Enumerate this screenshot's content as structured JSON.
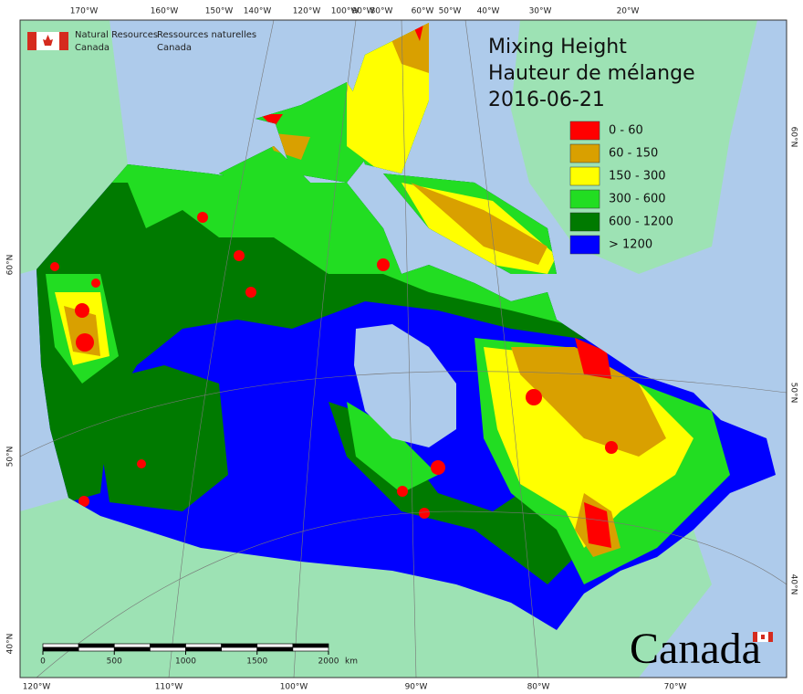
{
  "header": {
    "org_en": [
      "Natural Resources",
      "Canada"
    ],
    "org_fr": [
      "Ressources naturelles",
      "Canada"
    ]
  },
  "title": [
    "Mixing Height",
    "Hauteur de mélange",
    "2016-06-21"
  ],
  "legend": [
    {
      "label": "0 - 60",
      "color": "#ff0000"
    },
    {
      "label": "60 - 150",
      "color": "#d9a000"
    },
    {
      "label": "150 - 300",
      "color": "#ffff00"
    },
    {
      "label": "300 - 600",
      "color": "#22dd22"
    },
    {
      "label": "600 - 1200",
      "color": "#007a00"
    },
    {
      "label": "> 1200",
      "color": "#0000ff"
    }
  ],
  "top_labels": [
    "170°W",
    "160°W",
    "150°W",
    "140°W",
    "120°W",
    "100°W",
    "90°W",
    "80°W",
    "60°W",
    "50°W",
    "40°W",
    "30°W",
    "20°W"
  ],
  "bottom_labels": [
    "120°W",
    "110°W",
    "100°W",
    "90°W",
    "80°W",
    "70°W"
  ],
  "left_labels": [
    "60°N",
    "50°N",
    "40°N"
  ],
  "right_labels": [
    "60°N",
    "50°N",
    "40°N"
  ],
  "scale_bar": {
    "ticks": [
      0,
      500,
      1000,
      1500,
      2000
    ],
    "unit": "km"
  },
  "wordmark": "Canada"
}
